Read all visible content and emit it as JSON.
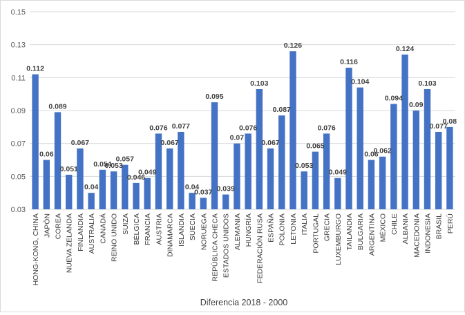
{
  "chart_data": {
    "type": "bar",
    "title": "",
    "xlabel": "Diferencia 2018 - 2000",
    "ylabel": "",
    "ylim": [
      0.03,
      0.15
    ],
    "yticks": [
      0.03,
      0.05,
      0.07,
      0.09,
      0.11,
      0.13,
      0.15
    ],
    "ytick_labels": [
      "0.03",
      "0.05",
      "0.07",
      "0.09",
      "0.11",
      "0.13",
      "0.15"
    ],
    "grid": true,
    "legend": "none",
    "bar_color": "#4472c4",
    "categories": [
      "HONG-KONG, CHINA",
      "JAPÓN",
      "COREA",
      "NUEVA ZELANDA",
      "FINLANDIA",
      "AUSTRALIA",
      "CANADÁ",
      "REINO UNIDO",
      "SUIZA",
      "BÉLGICA",
      "FRANCIA",
      "AUSTRIA",
      "DINAMARCA",
      "ISLANDIA",
      "SUECIA",
      "NORUEGA",
      "REPÚBLICA CHECA",
      "ESTADOS UNIDOS",
      "ALEMANIA",
      "HUNGRÍA",
      "FEDERACIÓN RUSA",
      "ESPAÑA",
      "POLONIA",
      "LETONIA",
      "ITALIA",
      "PORTUGAL",
      "GRECIA",
      "LUXEMBURGO",
      "TAILANDIA",
      "BULGARIA",
      "ARGENTINA",
      "MÉXICO",
      "CHILE",
      "ALBANIA",
      "MACEDONIA",
      "INDONESIA",
      "BRASIL",
      "PERÚ"
    ],
    "values": [
      0.112,
      0.06,
      0.089,
      0.051,
      0.067,
      0.04,
      0.054,
      0.053,
      0.057,
      0.046,
      0.049,
      0.076,
      0.067,
      0.077,
      0.04,
      0.037,
      0.095,
      0.039,
      0.07,
      0.076,
      0.103,
      0.067,
      0.087,
      0.126,
      0.053,
      0.065,
      0.076,
      0.049,
      0.116,
      0.104,
      0.06,
      0.062,
      0.094,
      0.124,
      0.09,
      0.103,
      0.077,
      0.08
    ],
    "data_labels": [
      "0.112",
      "0.06",
      "0.089",
      "0.051",
      "0.067",
      "0.04",
      "0.054",
      "0.053",
      "0.057",
      "0.046",
      "0.049",
      "0.076",
      "0.067",
      "0.077",
      "0.04",
      "0.037",
      "0.095",
      "0.039",
      "0.07",
      "0.076",
      "0.103",
      "0.067",
      "0.087",
      "0.126",
      "0.053",
      "0.065",
      "0.076",
      "0.049",
      "0.116",
      "0.104",
      "0.06",
      "0.062",
      "0.094",
      "0.124",
      "0.09",
      "0.103",
      "0.077",
      "0.08"
    ]
  }
}
